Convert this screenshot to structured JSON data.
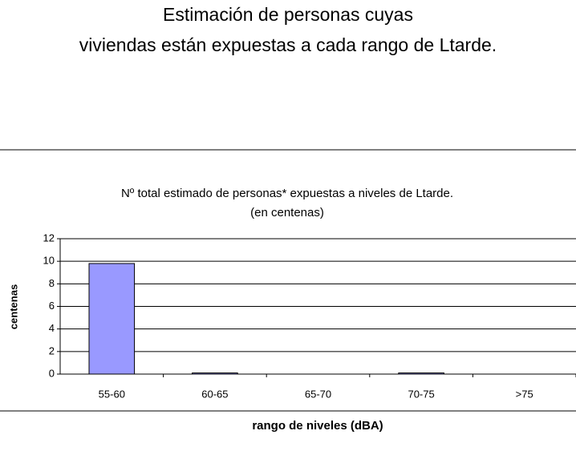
{
  "page": {
    "title": [
      "Estimación de personas cuyas",
      "viviendas están expuestas a cada rango de Ltarde."
    ]
  },
  "chart_data": {
    "type": "bar",
    "title": [
      "Nº total estimado de personas* expuestas a niveles de Ltarde.",
      "(en centenas)"
    ],
    "x_label": "rango de niveles (dBA)",
    "y_label": "centenas",
    "categories": [
      "55-60",
      "60-65",
      "65-70",
      "70-75",
      ">75"
    ],
    "values": [
      9.8,
      0.1,
      0,
      0.1,
      0
    ],
    "color": "#9999ff",
    "ylim": [
      0,
      12
    ],
    "yticks": [
      0,
      2,
      4,
      6,
      8,
      10,
      12
    ],
    "grid": true
  }
}
